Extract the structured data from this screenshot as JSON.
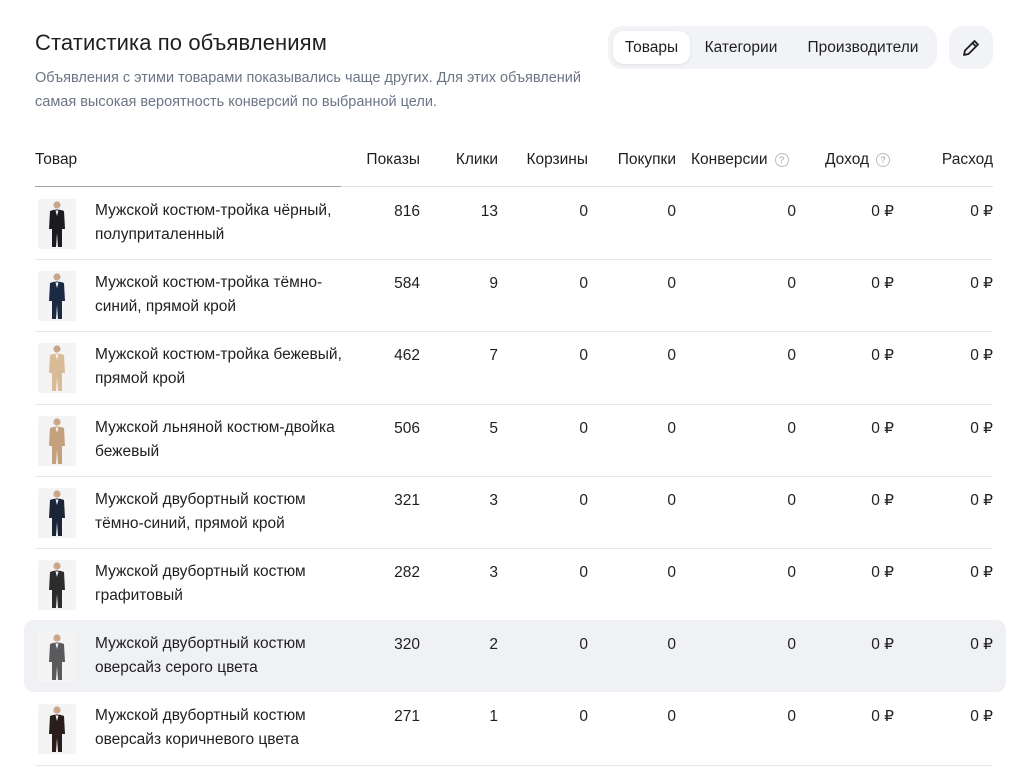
{
  "header": {
    "title": "Статистика по объявлениям",
    "subtitle": "Объявления с этими товарами показывались чаще других. Для этих объявлений самая высокая вероятность конверсий по выбранной цели."
  },
  "tabs": [
    {
      "label": "Товары",
      "active": true
    },
    {
      "label": "Категории",
      "active": false
    },
    {
      "label": "Производители",
      "active": false
    }
  ],
  "edit_button": {
    "icon": "pencil-icon"
  },
  "columns": {
    "product": "Товар",
    "shows": "Показы",
    "clicks": "Клики",
    "carts": "Корзины",
    "purchases": "Покупки",
    "conversions": "Конверсии",
    "income": "Доход",
    "expense": "Расход"
  },
  "rows": [
    {
      "name": "Мужской костюм-тройка чёрный, полуприталенный",
      "shows": "816",
      "clicks": "13",
      "carts": "0",
      "purchases": "0",
      "conversions": "0",
      "income": "0 ₽",
      "expense": "0 ₽",
      "suit_color": "#1c1c20",
      "bg_color": "#f4f4f4"
    },
    {
      "name": "Мужской костюм-тройка тёмно-синий, прямой крой",
      "shows": "584",
      "clicks": "9",
      "carts": "0",
      "purchases": "0",
      "conversions": "0",
      "income": "0 ₽",
      "expense": "0 ₽",
      "suit_color": "#1d2a44",
      "bg_color": "#f4f4f4"
    },
    {
      "name": "Мужской костюм-тройка бежевый, прямой крой",
      "shows": "462",
      "clicks": "7",
      "carts": "0",
      "purchases": "0",
      "conversions": "0",
      "income": "0 ₽",
      "expense": "0 ₽",
      "suit_color": "#d8bc98",
      "bg_color": "#f4f4f4"
    },
    {
      "name": "Мужской льняной костюм-двойка бежевый",
      "shows": "506",
      "clicks": "5",
      "carts": "0",
      "purchases": "0",
      "conversions": "0",
      "income": "0 ₽",
      "expense": "0 ₽",
      "suit_color": "#c4a17c",
      "bg_color": "#f4f4f4"
    },
    {
      "name": "Мужской двубортный костюм тёмно-синий, прямой крой",
      "shows": "321",
      "clicks": "3",
      "carts": "0",
      "purchases": "0",
      "conversions": "0",
      "income": "0 ₽",
      "expense": "0 ₽",
      "suit_color": "#1c2438",
      "bg_color": "#f4f4f4"
    },
    {
      "name": "Мужской двубортный костюм графитовый",
      "shows": "282",
      "clicks": "3",
      "carts": "0",
      "purchases": "0",
      "conversions": "0",
      "income": "0 ₽",
      "expense": "0 ₽",
      "suit_color": "#2c2c2e",
      "bg_color": "#f4f4f4"
    },
    {
      "name": "Мужской двубортный костюм оверсайз серого цвета",
      "shows": "320",
      "clicks": "2",
      "carts": "0",
      "purchases": "0",
      "conversions": "0",
      "income": "0 ₽",
      "expense": "0 ₽",
      "suit_color": "#5a5a5c",
      "bg_color": "#f4f4f4",
      "highlighted": true
    },
    {
      "name": "Мужской двубортный костюм оверсайз коричневого цвета",
      "shows": "271",
      "clicks": "1",
      "carts": "0",
      "purchases": "0",
      "conversions": "0",
      "income": "0 ₽",
      "expense": "0 ₽",
      "suit_color": "#2a1e1a",
      "bg_color": "#f4f4f4"
    }
  ],
  "colors": {
    "accent_text": "#1f1f1f",
    "muted_text": "#6b7585",
    "segment_bg": "#f1f3f6",
    "row_highlight": "#f0f1f5"
  }
}
